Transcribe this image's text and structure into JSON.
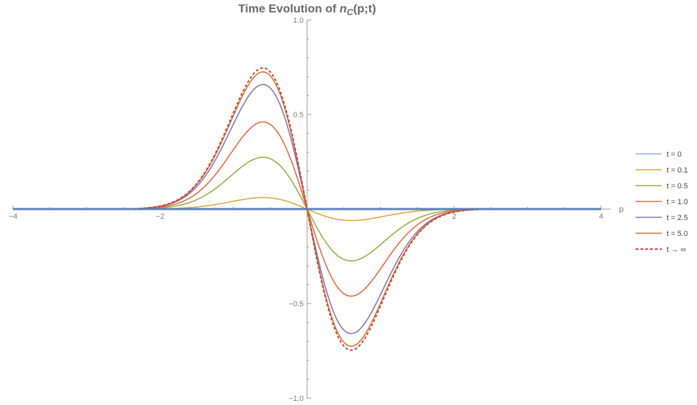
{
  "chart_data": {
    "type": "line",
    "title_prefix": "Time Evolution of ",
    "title_symbol": "n",
    "title_subscript": "C",
    "title_suffix": "(p;t)",
    "xlabel": "p",
    "ylabel": "",
    "xlim": [
      -4,
      4
    ],
    "ylim": [
      -1,
      1
    ],
    "xticks": [
      -4,
      -2,
      2,
      4
    ],
    "xtick_labels": [
      "−4",
      "−2",
      "2",
      "4"
    ],
    "yticks": [
      1.0,
      0.5,
      -0.5,
      -1.0
    ],
    "ytick_labels": [
      "1.0",
      "0.5",
      "−0.5",
      "−1.0"
    ],
    "legend_position": "right",
    "curve": "y = -A * p * exp(-p^2 / 0.72) / 0.849, peak amplitude A at p = ±0.849",
    "x": [
      -4.0,
      -3.5,
      -3.0,
      -2.5,
      -2.0,
      -1.5,
      -1.25,
      -1.0,
      -0.85,
      -0.7,
      -0.5,
      -0.25,
      0.0,
      0.25,
      0.5,
      0.7,
      0.85,
      1.0,
      1.25,
      1.5,
      2.0,
      2.5,
      3.0,
      3.5,
      4.0
    ],
    "series": [
      {
        "name": "t = 0",
        "color": "#8fb0d8",
        "dash": "solid",
        "peak": 0.0
      },
      {
        "name": "t = 0.1",
        "color": "#e4a534",
        "dash": "solid",
        "peak": 0.052
      },
      {
        "name": "t = 0.5",
        "color": "#8fb03a",
        "dash": "solid",
        "peak": 0.235
      },
      {
        "name": "t = 1.0",
        "color": "#e8653a",
        "dash": "solid",
        "peak": 0.395
      },
      {
        "name": "t = 2.5",
        "color": "#7b72b5",
        "dash": "solid",
        "peak": 0.565
      },
      {
        "name": "t = 5.0",
        "color": "#c8742f",
        "dash": "solid",
        "peak": 0.622
      },
      {
        "name": "t → ∞",
        "color": "#dc3a2e",
        "dash": "dashed",
        "peak": 0.64
      }
    ],
    "colors": {
      "axis": "#9a9a9a",
      "zero_line": "#5a7fb5",
      "title": "#6a6a6a"
    }
  }
}
